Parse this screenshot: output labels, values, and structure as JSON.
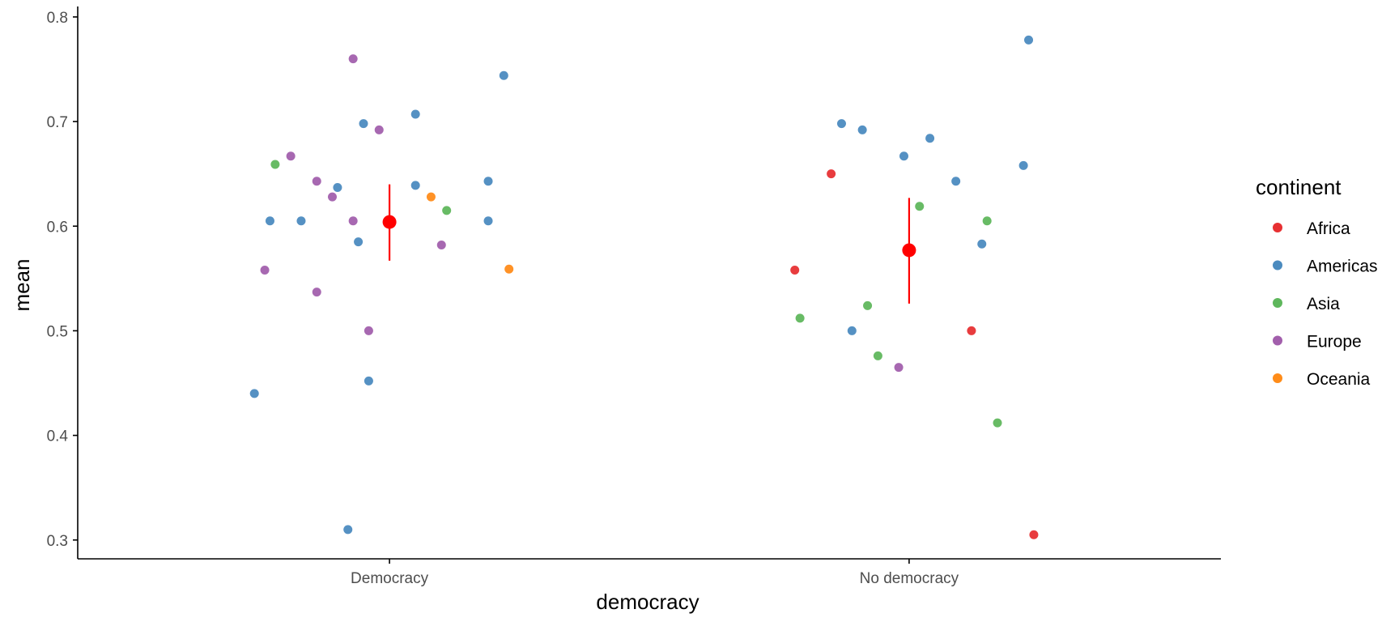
{
  "chart_data": {
    "type": "scatter",
    "xlabel": "democracy",
    "ylabel": "mean",
    "categories": [
      "Democracy",
      "No democracy"
    ],
    "ylim": [
      0.282,
      0.81
    ],
    "yticks": [
      "0.3",
      "0.4",
      "0.5",
      "0.6",
      "0.7",
      "0.8"
    ],
    "ytick_values": [
      0.3,
      0.4,
      0.5,
      0.6,
      0.7,
      0.8
    ],
    "grid": false,
    "legend": {
      "title": "continent",
      "placement": "right",
      "entries": [
        {
          "name": "Africa",
          "color": "#e41a1c"
        },
        {
          "name": "Americas",
          "color": "#377eb8"
        },
        {
          "name": "Asia",
          "color": "#4daf4a"
        },
        {
          "name": "Europe",
          "color": "#984ea3"
        },
        {
          "name": "Oceania",
          "color": "#ff7f00"
        }
      ]
    },
    "points": [
      {
        "x": 0.74,
        "y": 0.44,
        "continent": "Americas"
      },
      {
        "x": 0.77,
        "y": 0.605,
        "continent": "Americas"
      },
      {
        "x": 0.83,
        "y": 0.605,
        "continent": "Americas"
      },
      {
        "x": 0.9,
        "y": 0.637,
        "continent": "Americas"
      },
      {
        "x": 0.92,
        "y": 0.31,
        "continent": "Americas"
      },
      {
        "x": 0.94,
        "y": 0.585,
        "continent": "Americas"
      },
      {
        "x": 0.95,
        "y": 0.698,
        "continent": "Americas"
      },
      {
        "x": 0.96,
        "y": 0.452,
        "continent": "Americas"
      },
      {
        "x": 1.05,
        "y": 0.639,
        "continent": "Americas"
      },
      {
        "x": 1.05,
        "y": 0.707,
        "continent": "Americas"
      },
      {
        "x": 1.19,
        "y": 0.643,
        "continent": "Americas"
      },
      {
        "x": 1.19,
        "y": 0.605,
        "continent": "Americas"
      },
      {
        "x": 1.22,
        "y": 0.744,
        "continent": "Americas"
      },
      {
        "x": 0.78,
        "y": 0.659,
        "continent": "Asia"
      },
      {
        "x": 1.11,
        "y": 0.615,
        "continent": "Asia"
      },
      {
        "x": 0.76,
        "y": 0.558,
        "continent": "Europe"
      },
      {
        "x": 0.81,
        "y": 0.667,
        "continent": "Europe"
      },
      {
        "x": 0.86,
        "y": 0.643,
        "continent": "Europe"
      },
      {
        "x": 0.86,
        "y": 0.537,
        "continent": "Europe"
      },
      {
        "x": 0.89,
        "y": 0.628,
        "continent": "Europe"
      },
      {
        "x": 0.93,
        "y": 0.76,
        "continent": "Europe"
      },
      {
        "x": 0.93,
        "y": 0.605,
        "continent": "Europe"
      },
      {
        "x": 0.96,
        "y": 0.5,
        "continent": "Europe"
      },
      {
        "x": 0.98,
        "y": 0.692,
        "continent": "Europe"
      },
      {
        "x": 1.1,
        "y": 0.582,
        "continent": "Europe"
      },
      {
        "x": 1.08,
        "y": 0.628,
        "continent": "Oceania"
      },
      {
        "x": 1.23,
        "y": 0.559,
        "continent": "Oceania"
      },
      {
        "x": 1.78,
        "y": 0.558,
        "continent": "Africa"
      },
      {
        "x": 1.85,
        "y": 0.65,
        "continent": "Africa"
      },
      {
        "x": 2.12,
        "y": 0.5,
        "continent": "Africa"
      },
      {
        "x": 2.24,
        "y": 0.305,
        "continent": "Africa"
      },
      {
        "x": 1.87,
        "y": 0.698,
        "continent": "Americas"
      },
      {
        "x": 1.89,
        "y": 0.5,
        "continent": "Americas"
      },
      {
        "x": 1.91,
        "y": 0.692,
        "continent": "Americas"
      },
      {
        "x": 1.99,
        "y": 0.667,
        "continent": "Americas"
      },
      {
        "x": 2.04,
        "y": 0.684,
        "continent": "Americas"
      },
      {
        "x": 2.09,
        "y": 0.643,
        "continent": "Americas"
      },
      {
        "x": 2.14,
        "y": 0.583,
        "continent": "Americas"
      },
      {
        "x": 2.22,
        "y": 0.658,
        "continent": "Americas"
      },
      {
        "x": 2.23,
        "y": 0.778,
        "continent": "Americas"
      },
      {
        "x": 1.79,
        "y": 0.512,
        "continent": "Asia"
      },
      {
        "x": 1.92,
        "y": 0.524,
        "continent": "Asia"
      },
      {
        "x": 1.94,
        "y": 0.476,
        "continent": "Asia"
      },
      {
        "x": 2.02,
        "y": 0.619,
        "continent": "Asia"
      },
      {
        "x": 2.15,
        "y": 0.605,
        "continent": "Asia"
      },
      {
        "x": 2.17,
        "y": 0.412,
        "continent": "Asia"
      },
      {
        "x": 1.98,
        "y": 0.465,
        "continent": "Europe"
      }
    ],
    "summary": {
      "color": "#ff0000",
      "items": [
        {
          "category": "Democracy",
          "mean": 0.604,
          "lower": 0.567,
          "upper": 0.64
        },
        {
          "category": "No democracy",
          "mean": 0.577,
          "lower": 0.526,
          "upper": 0.627
        }
      ]
    }
  }
}
